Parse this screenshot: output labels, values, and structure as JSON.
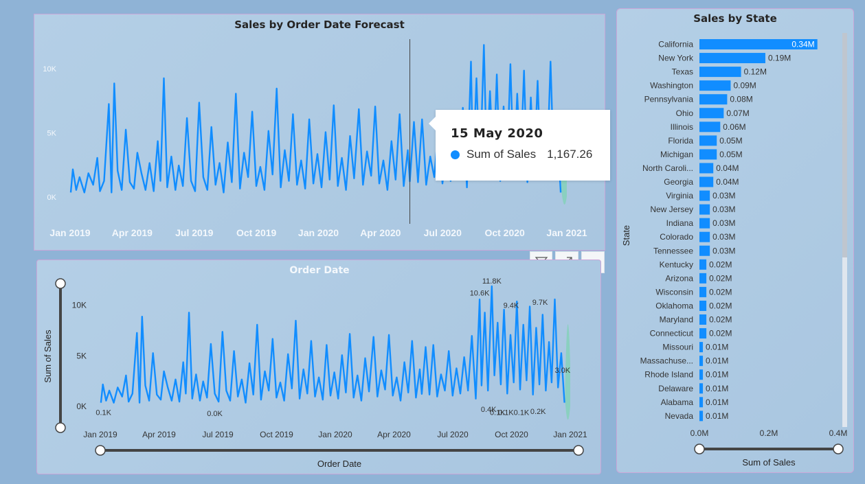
{
  "colors": {
    "bar": "#118DFF",
    "line": "#118DFF",
    "forecast": "#7fd3b4",
    "axis_text": "#f4f8fc",
    "dark_text": "#333333",
    "slider": "#444444"
  },
  "chart_data": [
    {
      "id": "forecast",
      "type": "line",
      "title": "Sales by Order Date Forecast",
      "xlabel": "",
      "ylabel": "",
      "x_ticks": [
        "Jan 2019",
        "Apr 2019",
        "Jul 2019",
        "Oct 2019",
        "Jan 2020",
        "Apr 2020",
        "Jul 2020",
        "Oct 2020",
        "Jan 2021"
      ],
      "y_ticks": [
        "0K",
        "5K",
        "10K"
      ],
      "ylim": [
        0,
        11500
      ],
      "x_range": [
        "2019-01-01",
        "2021-01-01"
      ],
      "grid": false,
      "series": [
        {
          "color": "#118DFF",
          "points": [
            [
              "2019-01-02",
              300
            ],
            [
              "2019-01-05",
              2100
            ],
            [
              "2019-01-10",
              500
            ],
            [
              "2019-01-15",
              1500
            ],
            [
              "2019-01-22",
              300
            ],
            [
              "2019-01-28",
              1800
            ],
            [
              "2019-02-04",
              900
            ],
            [
              "2019-02-10",
              3000
            ],
            [
              "2019-02-14",
              400
            ],
            [
              "2019-02-20",
              1200
            ],
            [
              "2019-02-27",
              7200
            ],
            [
              "2019-03-03",
              300
            ],
            [
              "2019-03-07",
              8800
            ],
            [
              "2019-03-12",
              2000
            ],
            [
              "2019-03-18",
              500
            ],
            [
              "2019-03-24",
              5200
            ],
            [
              "2019-03-30",
              1100
            ],
            [
              "2019-04-05",
              600
            ],
            [
              "2019-04-10",
              3400
            ],
            [
              "2019-04-16",
              1800
            ],
            [
              "2019-04-22",
              500
            ],
            [
              "2019-04-28",
              2600
            ],
            [
              "2019-05-04",
              400
            ],
            [
              "2019-05-10",
              4300
            ],
            [
              "2019-05-14",
              1200
            ],
            [
              "2019-05-19",
              9200
            ],
            [
              "2019-05-24",
              700
            ],
            [
              "2019-05-30",
              3100
            ],
            [
              "2019-06-05",
              500
            ],
            [
              "2019-06-10",
              2400
            ],
            [
              "2019-06-16",
              800
            ],
            [
              "2019-06-22",
              6100
            ],
            [
              "2019-06-28",
              1200
            ],
            [
              "2019-07-04",
              400
            ],
            [
              "2019-07-10",
              7300
            ],
            [
              "2019-07-16",
              1500
            ],
            [
              "2019-07-22",
              500
            ],
            [
              "2019-07-28",
              5400
            ],
            [
              "2019-08-03",
              900
            ],
            [
              "2019-08-09",
              2600
            ],
            [
              "2019-08-15",
              300
            ],
            [
              "2019-08-21",
              4200
            ],
            [
              "2019-08-27",
              1100
            ],
            [
              "2019-09-02",
              8000
            ],
            [
              "2019-09-08",
              600
            ],
            [
              "2019-09-14",
              3400
            ],
            [
              "2019-09-20",
              1500
            ],
            [
              "2019-09-26",
              6600
            ],
            [
              "2019-10-02",
              800
            ],
            [
              "2019-10-08",
              2300
            ],
            [
              "2019-10-14",
              500
            ],
            [
              "2019-10-20",
              5100
            ],
            [
              "2019-10-26",
              1700
            ],
            [
              "2019-11-01",
              8400
            ],
            [
              "2019-11-07",
              700
            ],
            [
              "2019-11-13",
              3600
            ],
            [
              "2019-11-19",
              1200
            ],
            [
              "2019-11-25",
              6400
            ],
            [
              "2019-12-01",
              900
            ],
            [
              "2019-12-07",
              2800
            ],
            [
              "2019-12-13",
              600
            ],
            [
              "2019-12-19",
              6000
            ],
            [
              "2019-12-25",
              1000
            ],
            [
              "2019-12-31",
              3300
            ],
            [
              "2020-01-06",
              700
            ],
            [
              "2020-01-12",
              5000
            ],
            [
              "2020-01-18",
              1300
            ],
            [
              "2020-01-24",
              7100
            ],
            [
              "2020-01-30",
              800
            ],
            [
              "2020-02-05",
              3000
            ],
            [
              "2020-02-11",
              500
            ],
            [
              "2020-02-17",
              4700
            ],
            [
              "2020-02-23",
              1400
            ],
            [
              "2020-03-01",
              6800
            ],
            [
              "2020-03-07",
              900
            ],
            [
              "2020-03-13",
              3500
            ],
            [
              "2020-03-19",
              1600
            ],
            [
              "2020-03-25",
              7000
            ],
            [
              "2020-03-31",
              1000
            ],
            [
              "2020-04-06",
              2800
            ],
            [
              "2020-04-12",
              500
            ],
            [
              "2020-04-18",
              4300
            ],
            [
              "2020-04-24",
              1300
            ],
            [
              "2020-04-30",
              6400
            ],
            [
              "2020-05-06",
              800
            ],
            [
              "2020-05-12",
              3600
            ],
            [
              "2020-05-15",
              1167
            ],
            [
              "2020-05-21",
              5800
            ],
            [
              "2020-05-27",
              1100
            ],
            [
              "2020-06-02",
              6000
            ],
            [
              "2020-06-08",
              900
            ],
            [
              "2020-06-14",
              3100
            ],
            [
              "2020-06-20",
              1500
            ],
            [
              "2020-06-26",
              5400
            ],
            [
              "2020-07-02",
              1000
            ],
            [
              "2020-07-08",
              3700
            ],
            [
              "2020-07-14",
              1200
            ],
            [
              "2020-07-20",
              4800
            ],
            [
              "2020-07-26",
              1500
            ],
            [
              "2020-08-01",
              6900
            ],
            [
              "2020-08-07",
              700
            ],
            [
              "2020-08-13",
              10500
            ],
            [
              "2020-08-16",
              2000
            ],
            [
              "2020-08-21",
              9200
            ],
            [
              "2020-08-26",
              1500
            ],
            [
              "2020-09-01",
              11800
            ],
            [
              "2020-09-05",
              3000
            ],
            [
              "2020-09-10",
              8200
            ],
            [
              "2020-09-15",
              2100
            ],
            [
              "2020-09-20",
              9500
            ],
            [
              "2020-09-25",
              1200
            ],
            [
              "2020-09-30",
              7000
            ],
            [
              "2020-10-05",
              2300
            ],
            [
              "2020-10-10",
              10300
            ],
            [
              "2020-10-15",
              1600
            ],
            [
              "2020-10-20",
              8000
            ],
            [
              "2020-10-25",
              2500
            ],
            [
              "2020-10-30",
              9800
            ],
            [
              "2020-11-04",
              1100
            ],
            [
              "2020-11-09",
              7700
            ],
            [
              "2020-11-14",
              2100
            ],
            [
              "2020-11-19",
              9000
            ],
            [
              "2020-11-24",
              1500
            ],
            [
              "2020-11-29",
              6300
            ],
            [
              "2020-12-03",
              2300
            ],
            [
              "2020-12-08",
              10500
            ],
            [
              "2020-12-13",
              1800
            ],
            [
              "2020-12-18",
              5200
            ],
            [
              "2020-12-23",
              300
            ]
          ]
        }
      ],
      "forecast": {
        "color": "#7fd3b4",
        "x_start": "2020-12-24",
        "x_end": "2021-01-01",
        "upper": 9000,
        "lower": -1500
      },
      "hover_date": "2020-05-15",
      "tooltip": {
        "date": "15 May 2020",
        "label": "Sum of Sales",
        "value": "1,167.26"
      }
    },
    {
      "id": "order_date",
      "type": "line",
      "title": "Order Date",
      "xlabel": "Order Date",
      "ylabel": "Sum of Sales",
      "x_ticks": [
        "Jan 2019",
        "Apr 2019",
        "Jul 2019",
        "Oct 2019",
        "Jan 2020",
        "Apr 2020",
        "Jul 2020",
        "Oct 2020",
        "Jan 2021"
      ],
      "y_ticks": [
        "0K",
        "5K",
        "10K"
      ],
      "ylim": [
        0,
        12000
      ],
      "x_range": [
        "2019-01-01",
        "2021-01-01"
      ],
      "grid": false,
      "data_labels": [
        {
          "x": "2019-01-06",
          "y": 0.1,
          "text": "0.1K"
        },
        {
          "x": "2019-06-28",
          "y": 0.0,
          "text": "0.0K"
        },
        {
          "x": "2020-08-13",
          "y": 10.6,
          "text": "10.6K"
        },
        {
          "x": "2020-09-01",
          "y": 11.8,
          "text": "11.8K"
        },
        {
          "x": "2020-10-01",
          "y": 9.4,
          "text": "9.4K"
        },
        {
          "x": "2020-11-15",
          "y": 9.7,
          "text": "9.7K"
        },
        {
          "x": "2020-09-10",
          "y": 0.1,
          "text": "0.1K"
        },
        {
          "x": "2020-08-27",
          "y": 0.4,
          "text": "0.4K"
        },
        {
          "x": "2020-10-05",
          "y": 0.1,
          "text": "0.1K0.1K"
        },
        {
          "x": "2020-11-12",
          "y": 0.2,
          "text": "0.2K"
        },
        {
          "x": "2020-12-20",
          "y": 3.0,
          "text": "3.0K"
        }
      ]
    },
    {
      "id": "state",
      "type": "bar",
      "orientation": "horizontal",
      "title": "Sales by State",
      "xlabel": "Sum of Sales",
      "ylabel": "State",
      "x_ticks": [
        "0.0M",
        "0.2M",
        "0.4M"
      ],
      "xlim": [
        0,
        0.4
      ],
      "categories": [
        "California",
        "New York",
        "Texas",
        "Washington",
        "Pennsylvania",
        "Ohio",
        "Illinois",
        "Florida",
        "Michigan",
        "North Caroli...",
        "Georgia",
        "Virginia",
        "New Jersey",
        "Indiana",
        "Colorado",
        "Tennessee",
        "Kentucky",
        "Arizona",
        "Wisconsin",
        "Oklahoma",
        "Maryland",
        "Connecticut",
        "Missouri",
        "Massachuse...",
        "Rhode Island",
        "Delaware",
        "Alabama",
        "Nevada"
      ],
      "values": [
        0.34,
        0.19,
        0.12,
        0.09,
        0.08,
        0.07,
        0.06,
        0.05,
        0.05,
        0.04,
        0.04,
        0.03,
        0.03,
        0.03,
        0.03,
        0.03,
        0.02,
        0.02,
        0.02,
        0.02,
        0.02,
        0.02,
        0.01,
        0.01,
        0.01,
        0.01,
        0.01,
        0.01
      ],
      "value_labels": [
        "0.34M",
        "0.19M",
        "0.12M",
        "0.09M",
        "0.08M",
        "0.07M",
        "0.06M",
        "0.05M",
        "0.05M",
        "0.04M",
        "0.04M",
        "0.03M",
        "0.03M",
        "0.03M",
        "0.03M",
        "0.03M",
        "0.02M",
        "0.02M",
        "0.02M",
        "0.02M",
        "0.02M",
        "0.02M",
        "0.01M",
        "0.01M",
        "0.01M",
        "0.01M",
        "0.01M",
        "0.01M"
      ]
    }
  ]
}
